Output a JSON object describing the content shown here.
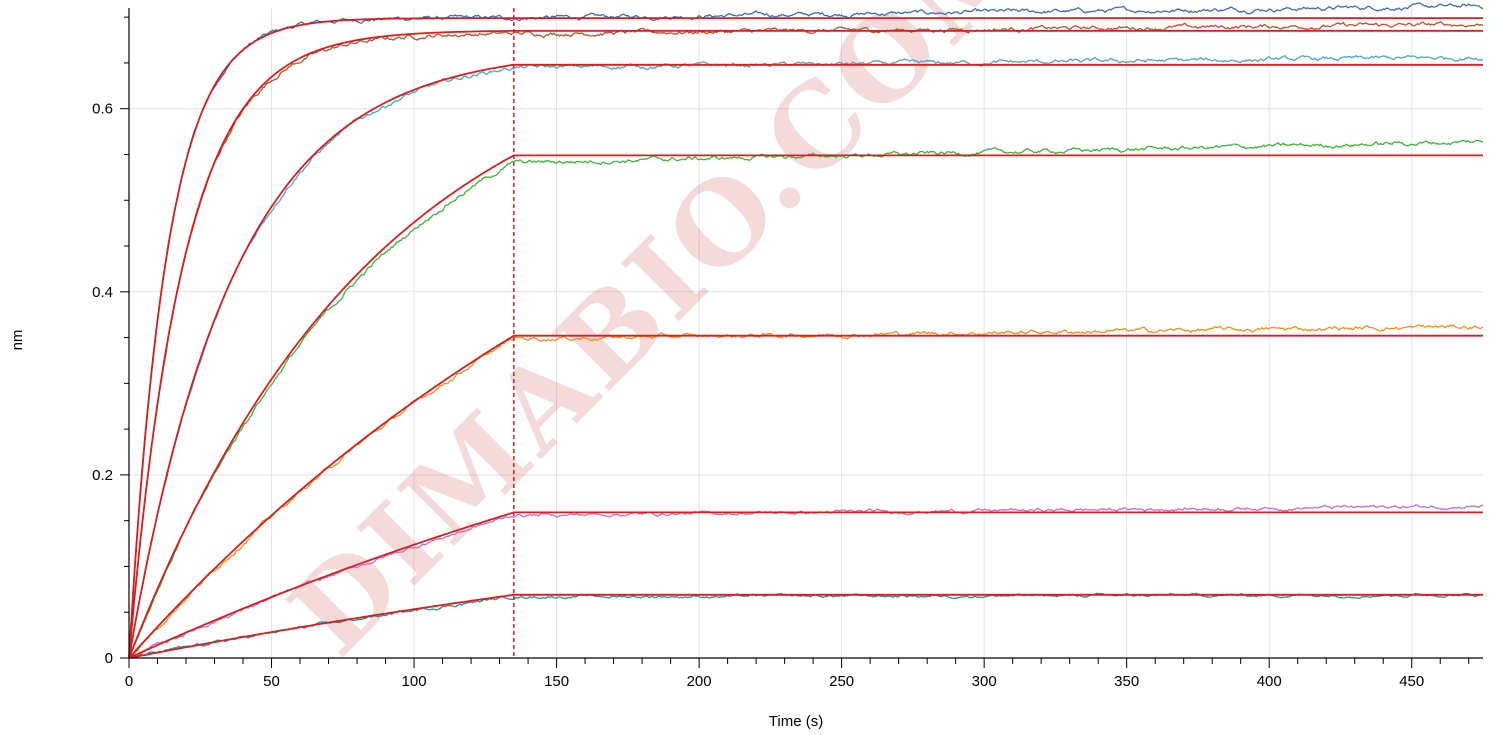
{
  "chart_data": {
    "type": "line",
    "title": "",
    "xlabel": "Time (s)",
    "ylabel": "nm",
    "xlim": [
      0,
      475
    ],
    "ylim": [
      0,
      0.71
    ],
    "x_ticks": [
      0,
      50,
      100,
      150,
      200,
      250,
      300,
      350,
      400,
      450
    ],
    "y_ticks": [
      0,
      0.2,
      0.4,
      0.6
    ],
    "x_tick_labels": [
      "0",
      "50",
      "100",
      "150",
      "200",
      "250",
      "300",
      "350",
      "400",
      "450"
    ],
    "y_tick_labels": [
      "0",
      "0.2",
      "0.4",
      "0.6"
    ],
    "grid": true,
    "association_end_marker": 135,
    "fit_color": "#d81e1e",
    "series": [
      {
        "color": "#3a6fb5",
        "plateau": 0.699,
        "k_obs": 0.075,
        "end_value": 0.712,
        "noise": 0.0015,
        "fit_plateau": 0.699
      },
      {
        "color": "#b5552c",
        "plateau": 0.682,
        "k_obs": 0.052,
        "end_value": 0.692,
        "noise": 0.0015,
        "fit_plateau": 0.685
      },
      {
        "color": "#4ba8c8",
        "plateau": 0.645,
        "k_obs": 0.027,
        "end_value": 0.656,
        "noise": 0.0015,
        "fit_plateau": 0.648
      },
      {
        "color": "#3cb43c",
        "plateau": 0.541,
        "k_obs": 0.0115,
        "end_value": 0.564,
        "noise": 0.0015,
        "fit_plateau": 0.549
      },
      {
        "color": "#f0901e",
        "plateau": 0.349,
        "k_obs": 0.0045,
        "end_value": 0.362,
        "noise": 0.0015,
        "fit_plateau": 0.352
      },
      {
        "color": "#c86ec8",
        "plateau": 0.156,
        "k_obs": 0.003,
        "end_value": 0.166,
        "noise": 0.0012,
        "fit_plateau": 0.159
      },
      {
        "color": "#2f8f9a",
        "plateau": 0.067,
        "k_obs": 0.0025,
        "end_value": 0.069,
        "noise": 0.001,
        "fit_plateau": 0.069
      }
    ],
    "watermark": "DIMABIO.COM"
  }
}
